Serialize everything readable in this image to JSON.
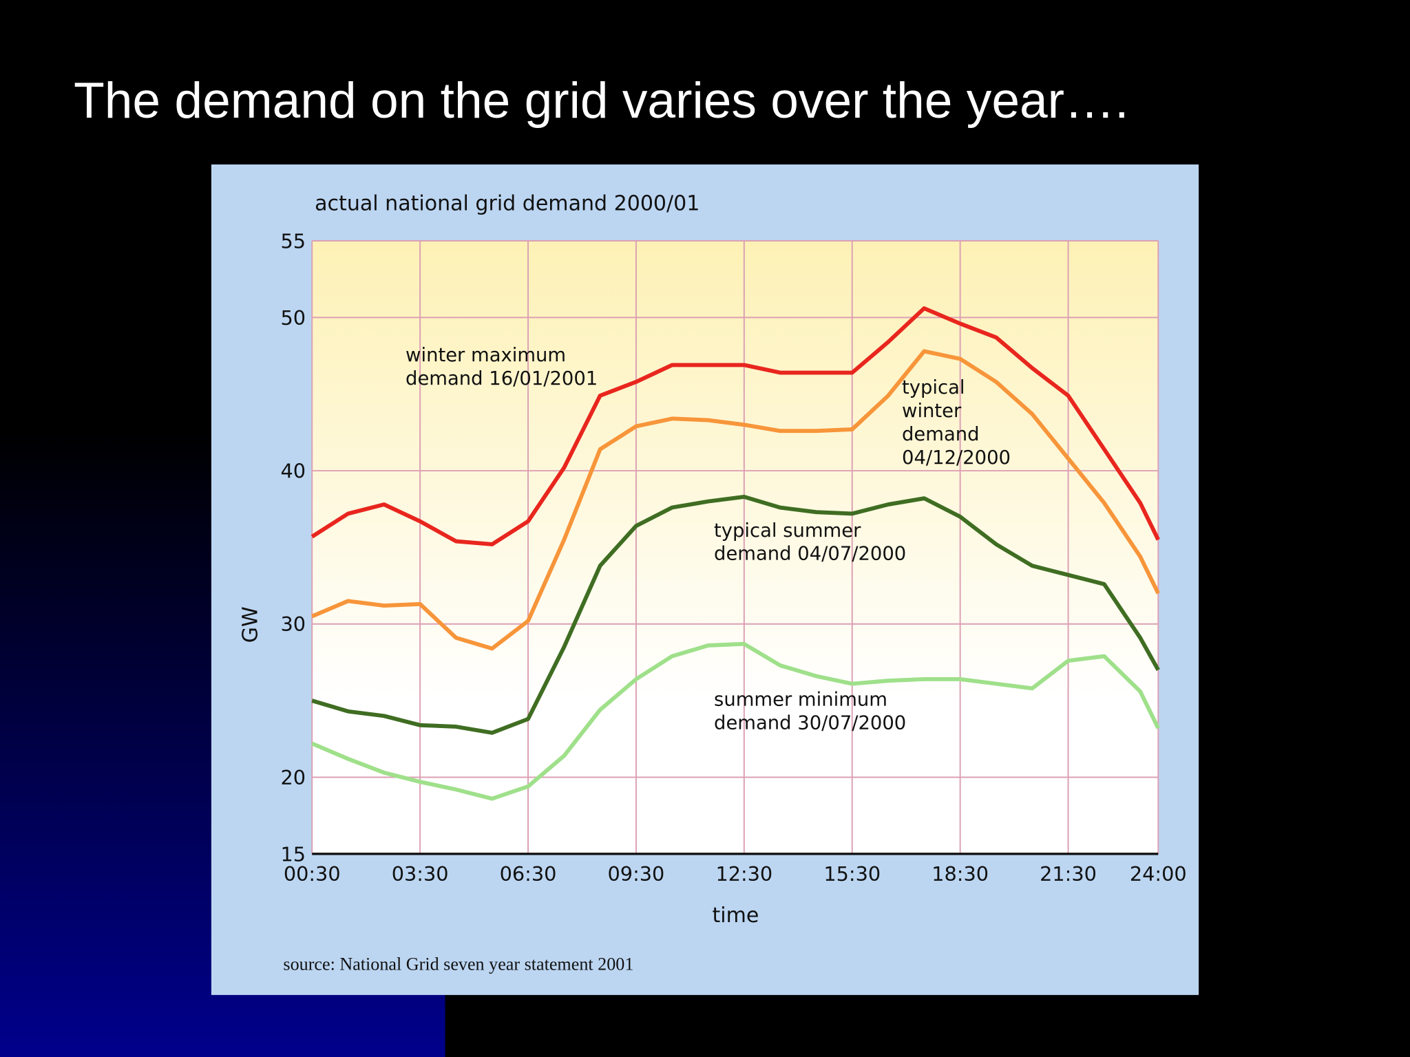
{
  "title": "The demand on the grid varies over the year….",
  "chart_data": {
    "type": "line",
    "title": "actual national grid demand 2000/01",
    "y_label": "GW",
    "x_label": "time",
    "source": "source: National Grid seven year statement 2001",
    "x": [
      0.5,
      1.5,
      2.5,
      3.5,
      4.5,
      5.5,
      6.5,
      7.5,
      8.5,
      9.5,
      10.5,
      11.5,
      12.5,
      13.5,
      14.5,
      15.5,
      16.5,
      17.5,
      18.5,
      19.5,
      20.5,
      21.5,
      22.5,
      23.5,
      24
    ],
    "xlim": [
      0.5,
      24
    ],
    "xticks": [
      {
        "value": 0.5,
        "label": "00:30"
      },
      {
        "value": 3.5,
        "label": "03:30"
      },
      {
        "value": 6.5,
        "label": "06:30"
      },
      {
        "value": 9.5,
        "label": "09:30"
      },
      {
        "value": 12.5,
        "label": "12:30"
      },
      {
        "value": 15.5,
        "label": "15:30"
      },
      {
        "value": 18.5,
        "label": "18:30"
      },
      {
        "value": 21.5,
        "label": "21:30"
      },
      {
        "value": 24,
        "label": "24:00"
      }
    ],
    "ylim": [
      15,
      55
    ],
    "yticks": [
      15,
      20,
      30,
      40,
      50,
      55
    ],
    "grid": true,
    "series": [
      {
        "color": "#e8261e",
        "values": [
          35.7,
          37.2,
          37.8,
          36.7,
          35.4,
          35.2,
          36.7,
          40.2,
          44.9,
          45.8,
          46.9,
          46.9,
          46.9,
          46.4,
          46.4,
          46.4,
          48.4,
          50.6,
          49.6,
          48.7,
          46.7,
          44.9,
          41.4,
          37.9,
          35.5
        ]
      },
      {
        "color": "#f7953a",
        "values": [
          30.5,
          31.5,
          31.2,
          31.3,
          29.1,
          28.4,
          30.2,
          35.5,
          41.4,
          42.9,
          43.4,
          43.3,
          43.0,
          42.6,
          42.6,
          42.7,
          44.9,
          47.8,
          47.3,
          45.8,
          43.7,
          40.8,
          37.9,
          34.4,
          32.0
        ]
      },
      {
        "color": "#3f6d22",
        "values": [
          25.0,
          24.3,
          24.0,
          23.4,
          23.3,
          22.9,
          23.8,
          28.5,
          33.8,
          36.4,
          37.6,
          38.0,
          38.3,
          37.6,
          37.3,
          37.2,
          37.8,
          38.2,
          37.0,
          35.2,
          33.8,
          33.2,
          32.6,
          29.1,
          27.0
        ]
      },
      {
        "color": "#9fe08a",
        "values": [
          22.2,
          21.2,
          20.3,
          19.7,
          19.2,
          18.6,
          19.4,
          21.4,
          24.4,
          26.4,
          27.9,
          28.6,
          28.7,
          27.3,
          26.6,
          26.1,
          26.3,
          26.4,
          26.4,
          26.1,
          25.8,
          27.6,
          27.9,
          25.6,
          23.2
        ]
      }
    ],
    "annotations": [
      {
        "lines": [
          "winter maximum",
          "demand 16/01/2001"
        ]
      },
      {
        "lines": [
          "typical",
          "winter",
          "demand",
          "04/12/2000"
        ]
      },
      {
        "lines": [
          "typical summer",
          "demand 04/07/2000"
        ]
      },
      {
        "lines": [
          "summer minimum",
          "demand 30/07/2000"
        ]
      }
    ]
  }
}
